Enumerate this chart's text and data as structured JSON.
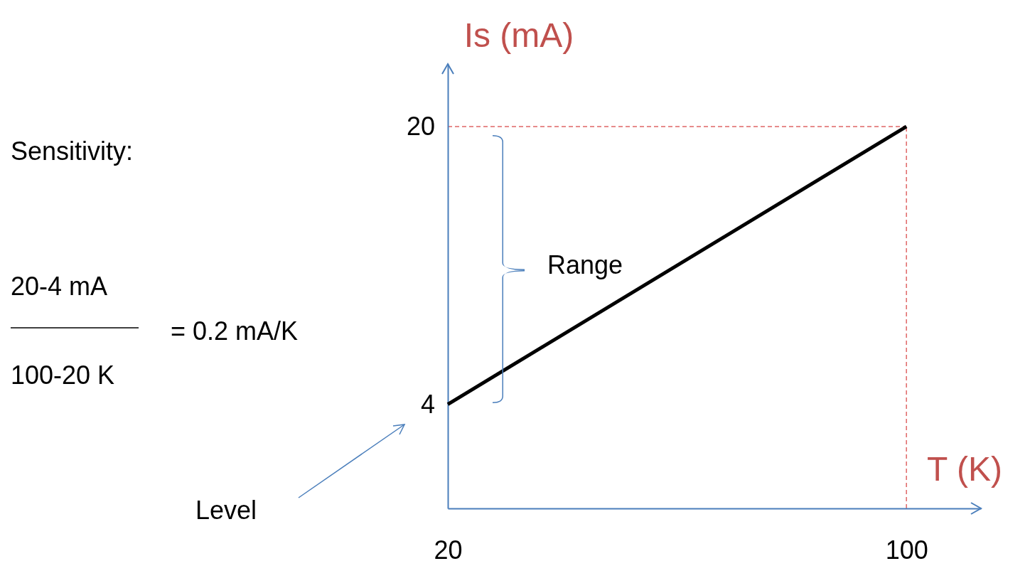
{
  "chart_data": {
    "type": "line",
    "xlabel": "T (K)",
    "ylabel": "Is (mA)",
    "x": [
      20,
      100
    ],
    "series": [
      {
        "color": "#000000",
        "values": [
          4,
          20
        ]
      }
    ],
    "xlim": [
      20,
      113
    ],
    "ylim": [
      -2,
      23.6
    ],
    "xticks": [
      20,
      100
    ],
    "yticks": [
      4,
      20
    ],
    "marker": "none",
    "line_style": "solid",
    "ref_lines": [
      {
        "axis": "y",
        "value": 20,
        "color": "#e06666",
        "line_style": "dashed"
      },
      {
        "axis": "x",
        "value": 100,
        "color": "#e06666",
        "line_style": "dashed"
      }
    ],
    "annotations": [
      "Sensitivity:",
      "20-4 mA",
      "100-20 K",
      "= 0.2 mA/K",
      "Range",
      "Level"
    ]
  }
}
